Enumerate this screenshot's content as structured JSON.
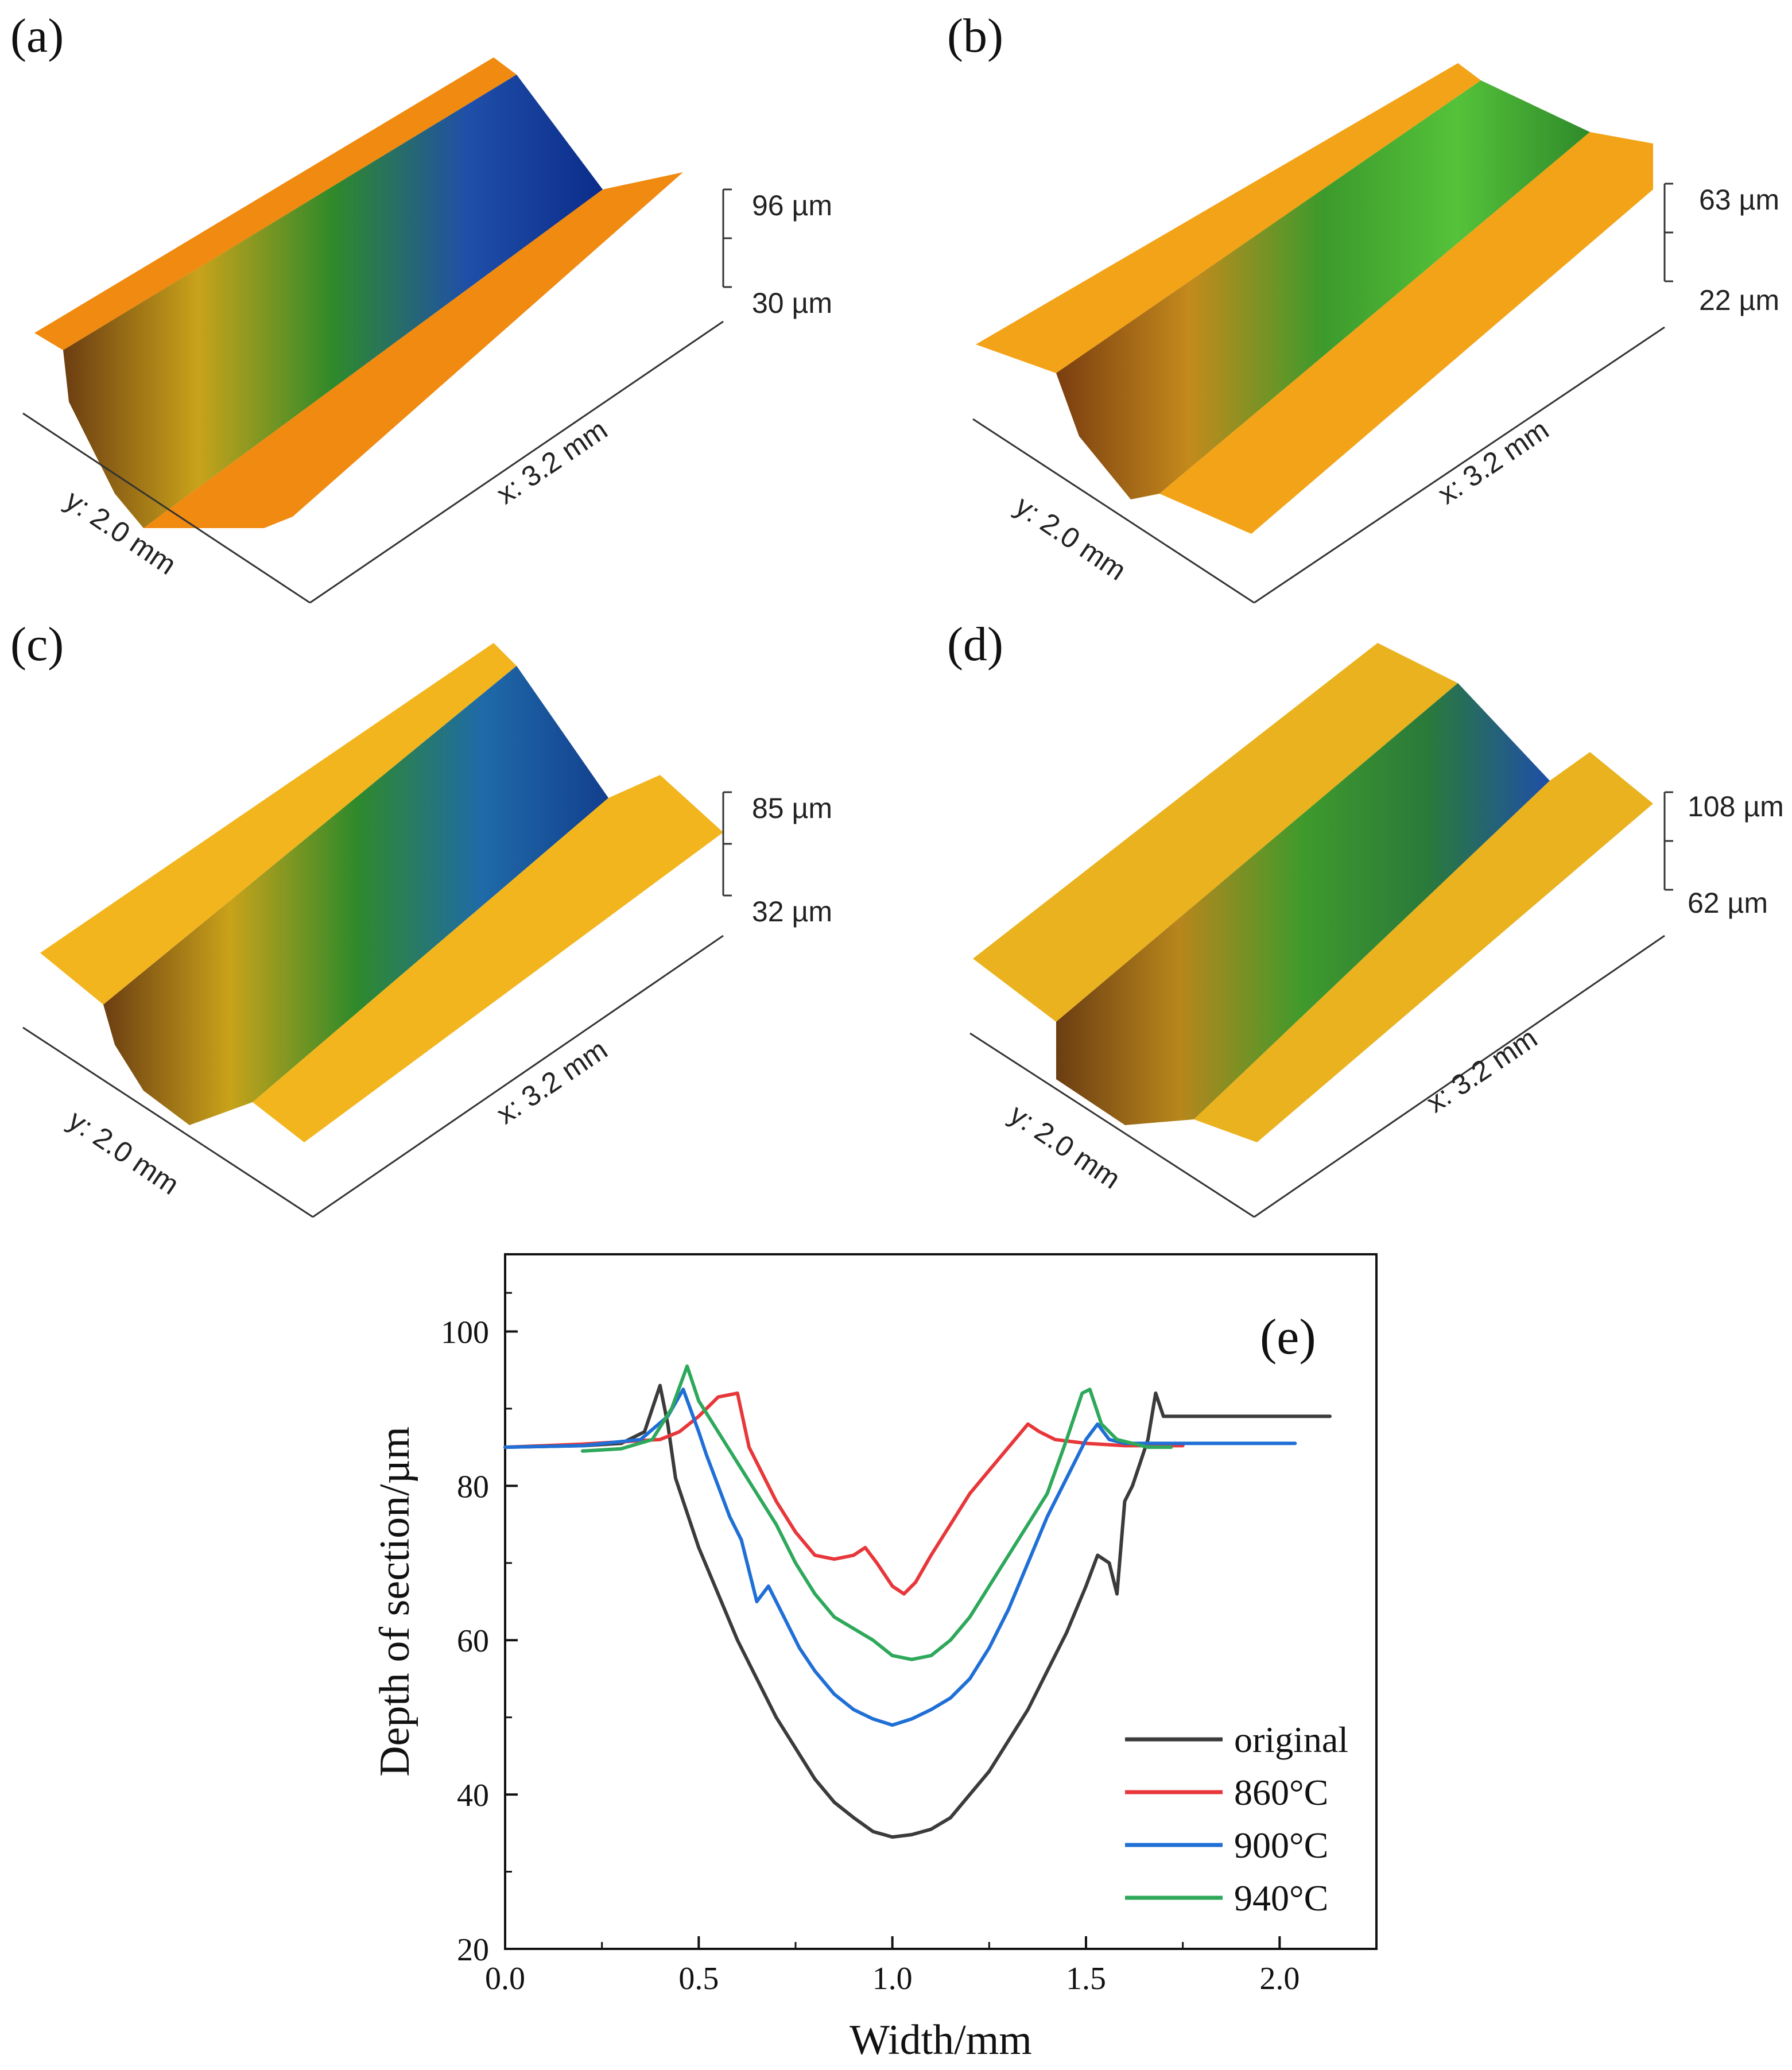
{
  "panels": [
    {
      "letter": "(a)",
      "scale_top": "96 µm",
      "scale_bottom": "30 µm",
      "x_dim": "x: 3.2 mm",
      "y_dim": "y: 2.0 mm",
      "surface_color": "#f08a10",
      "groove_colors": [
        "#6b3d12",
        "#c9a21a",
        "#2f8a2a",
        "#1f4fa8",
        "#0b2c8a"
      ]
    },
    {
      "letter": "(b)",
      "scale_top": "63 µm",
      "scale_bottom": "22 µm",
      "x_dim": "x: 3.2 mm",
      "y_dim": "y: 2.0 mm",
      "surface_color": "#f3a317",
      "groove_colors": [
        "#7a3d10",
        "#c48a1c",
        "#3c9a2c",
        "#55c23a",
        "#2f8a2a"
      ]
    },
    {
      "letter": "(c)",
      "scale_top": "85 µm",
      "scale_bottom": "32 µm",
      "x_dim": "x: 3.2 mm",
      "y_dim": "y: 2.0 mm",
      "surface_color": "#f2b51e",
      "groove_colors": [
        "#6b3d12",
        "#c9a21a",
        "#2f8a2a",
        "#1f6aa8",
        "#123f8e"
      ]
    },
    {
      "letter": "(d)",
      "scale_top": "108 µm",
      "scale_bottom": "62 µm",
      "x_dim": "x: 3.2 mm",
      "y_dim": "y: 2.0 mm",
      "surface_color": "#e9b21e",
      "groove_colors": [
        "#6b3d12",
        "#b8861c",
        "#3f9a2c",
        "#2a7a3a",
        "#1f4fa8"
      ]
    }
  ],
  "chart_data": {
    "type": "line",
    "panel_letter": "(e)",
    "title": "",
    "xlabel": "Width/mm",
    "ylabel": "Depth of section/µm",
    "xlim": [
      0.0,
      2.25
    ],
    "ylim": [
      20,
      110
    ],
    "xticks": [
      0.0,
      0.5,
      1.0,
      1.5,
      2.0
    ],
    "xtick_labels": [
      "0.0",
      "0.5",
      "1.0",
      "1.5",
      "2.0"
    ],
    "yticks": [
      20,
      40,
      60,
      80,
      100
    ],
    "ytick_labels": [
      "20",
      "40",
      "60",
      "80",
      "100"
    ],
    "legend_position": "bottom-right",
    "series": [
      {
        "name": "original",
        "color": "#3b3b3b",
        "x": [
          0.0,
          0.1,
          0.2,
          0.3,
          0.36,
          0.4,
          0.42,
          0.44,
          0.46,
          0.48,
          0.5,
          0.55,
          0.6,
          0.65,
          0.7,
          0.75,
          0.8,
          0.85,
          0.9,
          0.95,
          1.0,
          1.05,
          1.1,
          1.15,
          1.2,
          1.25,
          1.3,
          1.35,
          1.4,
          1.45,
          1.5,
          1.53,
          1.56,
          1.58,
          1.6,
          1.62,
          1.64,
          1.66,
          1.68,
          1.7,
          1.75,
          1.85,
          2.0,
          2.13
        ],
        "y": [
          85,
          85.1,
          85.2,
          85.5,
          87,
          93,
          88,
          81,
          78,
          75,
          72,
          66,
          60,
          55,
          50,
          46,
          42,
          39,
          37,
          35.2,
          34.5,
          34.8,
          35.5,
          37,
          40,
          43,
          47,
          51,
          56,
          61,
          67,
          71,
          70,
          66,
          78,
          80,
          83,
          86,
          92,
          89,
          89,
          89,
          89,
          89
        ]
      },
      {
        "name": "860°C",
        "color": "#e8373a",
        "x": [
          0.0,
          0.2,
          0.4,
          0.45,
          0.5,
          0.55,
          0.6,
          0.63,
          0.66,
          0.7,
          0.75,
          0.8,
          0.85,
          0.9,
          0.93,
          0.96,
          1.0,
          1.03,
          1.06,
          1.1,
          1.15,
          1.2,
          1.25,
          1.3,
          1.35,
          1.38,
          1.42,
          1.5,
          1.6,
          1.75
        ],
        "y": [
          85,
          85.4,
          86,
          87,
          89,
          91.5,
          92,
          85,
          82,
          78,
          74,
          71,
          70.5,
          71,
          72,
          70,
          67,
          66,
          67.5,
          71,
          75,
          79,
          82,
          85,
          88,
          87,
          86,
          85.5,
          85.2,
          85.2
        ]
      },
      {
        "name": "900°C",
        "color": "#1f6fd6",
        "x": [
          0.0,
          0.2,
          0.35,
          0.42,
          0.46,
          0.5,
          0.52,
          0.55,
          0.58,
          0.61,
          0.63,
          0.65,
          0.68,
          0.72,
          0.76,
          0.8,
          0.85,
          0.9,
          0.95,
          1.0,
          1.05,
          1.1,
          1.15,
          1.2,
          1.25,
          1.3,
          1.35,
          1.4,
          1.45,
          1.5,
          1.53,
          1.56,
          1.6,
          1.7,
          1.85,
          2.04
        ],
        "y": [
          85,
          85.2,
          86,
          89,
          92.5,
          87,
          84,
          80,
          76,
          73,
          69,
          65,
          67,
          63,
          59,
          56,
          53,
          51,
          49.8,
          49,
          49.8,
          51,
          52.5,
          55,
          59,
          64,
          70,
          76,
          81,
          86,
          88,
          86,
          85.5,
          85.5,
          85.5,
          85.5
        ]
      },
      {
        "name": "940°C",
        "color": "#2ea85a",
        "x": [
          0.2,
          0.3,
          0.38,
          0.43,
          0.47,
          0.5,
          0.55,
          0.6,
          0.65,
          0.7,
          0.75,
          0.8,
          0.85,
          0.9,
          0.95,
          1.0,
          1.05,
          1.1,
          1.15,
          1.2,
          1.25,
          1.3,
          1.35,
          1.4,
          1.45,
          1.49,
          1.51,
          1.54,
          1.58,
          1.62,
          1.66,
          1.72
        ],
        "y": [
          84.5,
          84.8,
          86,
          90,
          95.5,
          91,
          87,
          83,
          79,
          75,
          70,
          66,
          63,
          61.5,
          60,
          58,
          57.5,
          58,
          60,
          63,
          67,
          71,
          75,
          79,
          86,
          92,
          92.5,
          88,
          86,
          85.5,
          85,
          85
        ]
      }
    ]
  }
}
